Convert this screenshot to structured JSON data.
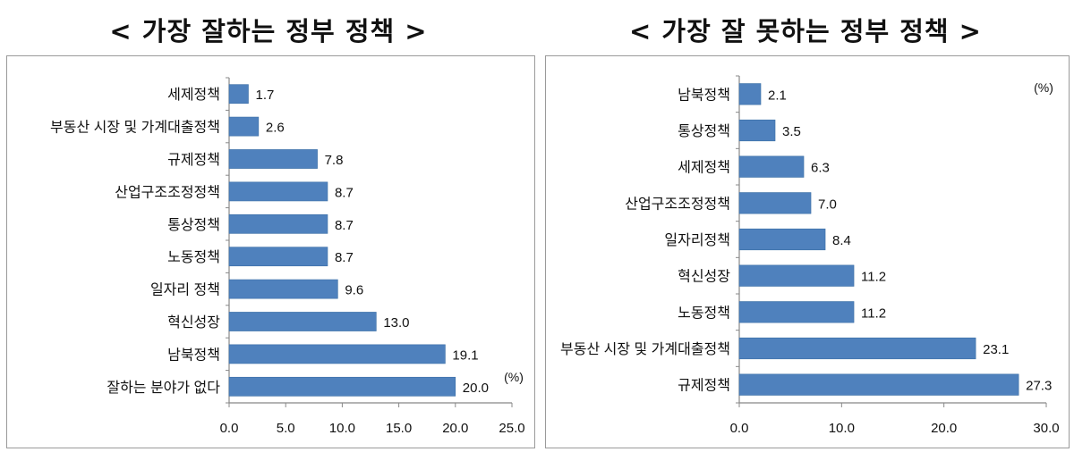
{
  "chart_data": [
    {
      "type": "bar",
      "orientation": "horizontal",
      "title": "< 가장 잘하는 정부 정책 >",
      "unit_label": "(%)",
      "categories": [
        "세제정책",
        "부동산 시장 및 가계대출정책",
        "규제정책",
        "산업구조조정정책",
        "통상정책",
        "노동정책",
        "일자리 정책",
        "혁신성장",
        "남북정책",
        "잘하는 분야가 없다"
      ],
      "values": [
        1.7,
        2.6,
        7.8,
        8.7,
        8.7,
        8.7,
        9.6,
        13.0,
        19.1,
        20.0
      ],
      "xlim": [
        0,
        25
      ],
      "xticks": [
        "0.0",
        "5.0",
        "10.0",
        "15.0",
        "20.0",
        "25.0"
      ],
      "bar_color": "#4F81BD",
      "grid": false
    },
    {
      "type": "bar",
      "orientation": "horizontal",
      "title": "< 가장 잘 못하는 정부 정책 >",
      "unit_label": "(%)",
      "categories": [
        "남북정책",
        "통상정책",
        "세제정책",
        "산업구조조정정책",
        "일자리정책",
        "혁신성장",
        "노동정책",
        "부동산 시장 및 가계대출정책",
        "규제정책"
      ],
      "values": [
        2.1,
        3.5,
        6.3,
        7.0,
        8.4,
        11.2,
        11.2,
        23.1,
        27.3
      ],
      "xlim": [
        0,
        30
      ],
      "xticks": [
        "0.0",
        "10.0",
        "20.0",
        "30.0"
      ],
      "bar_color": "#4F81BD",
      "grid": false
    }
  ]
}
